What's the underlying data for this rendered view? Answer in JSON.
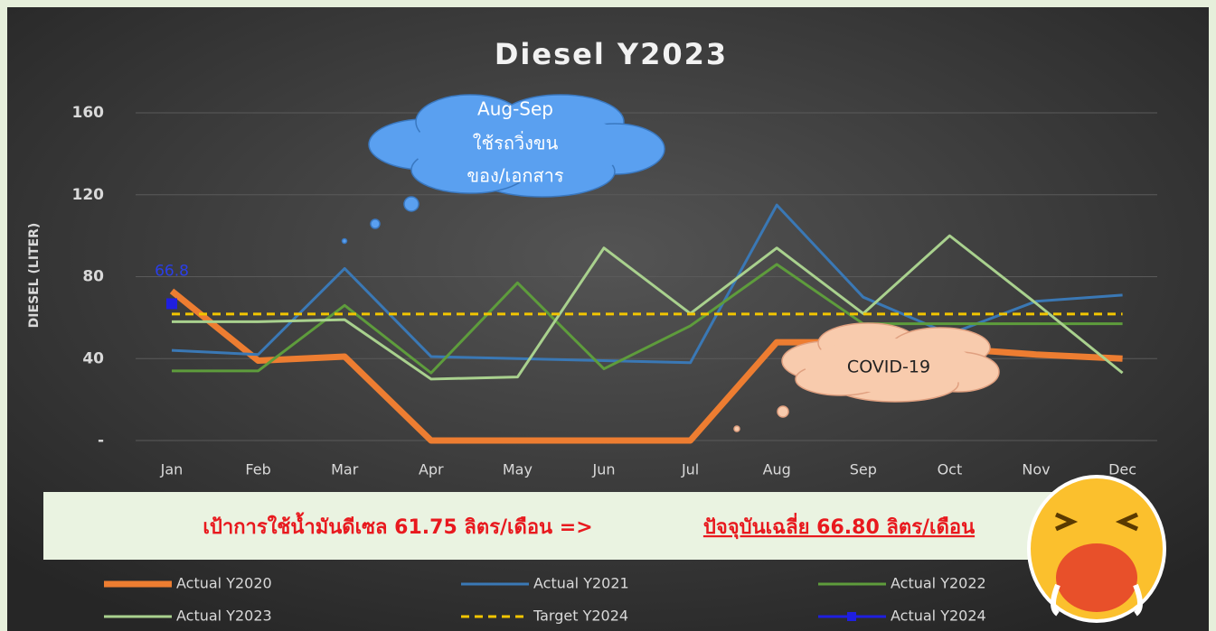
{
  "chart_data": {
    "type": "line",
    "title": "Diesel Y2023",
    "y_label": "DIESEL (LITER)",
    "categories": [
      "Jan",
      "Feb",
      "Mar",
      "Apr",
      "May",
      "Jun",
      "Jul",
      "Aug",
      "Sep",
      "Oct",
      "Nov",
      "Dec"
    ],
    "ylim": [
      0,
      160
    ],
    "yticks": [
      {
        "value": 0,
        "label": "-"
      },
      40,
      80,
      120,
      160
    ],
    "grid": true,
    "legend": "bottom",
    "series": [
      {
        "name": "Actual Y2020",
        "color": "#ed7d31",
        "values": [
          73,
          39,
          41,
          0,
          0,
          0,
          0,
          48,
          48,
          45,
          42,
          40
        ]
      },
      {
        "name": "Actual Y2021",
        "color": "#3a78b5",
        "values": [
          44,
          42,
          84,
          41,
          40,
          39,
          38,
          115,
          70,
          52,
          68,
          71
        ]
      },
      {
        "name": "Actual Y2022",
        "color": "#5e9c3c",
        "values": [
          34,
          34,
          66,
          33,
          77,
          35,
          56,
          86,
          57,
          57,
          57,
          57
        ]
      },
      {
        "name": "Actual Y2023",
        "color": "#a9d18e",
        "values": [
          58,
          58,
          59,
          30,
          31,
          94,
          62,
          94,
          62,
          100,
          67,
          33
        ]
      },
      {
        "name": "Target Y2024",
        "color": "#f2c500",
        "style": "dashed",
        "values": [
          61.75,
          61.75,
          61.75,
          61.75,
          61.75,
          61.75,
          61.75,
          61.75,
          61.75,
          61.75,
          61.75,
          61.75
        ]
      },
      {
        "name": "Actual Y2024",
        "color": "#1f1fe0",
        "marker": "square",
        "data_labels": true,
        "values": [
          66.8,
          null,
          null,
          null,
          null,
          null,
          null,
          null,
          null,
          null,
          null,
          null
        ]
      }
    ],
    "annotations": [
      "Aug-Sep",
      "ใช้รถวิ่งขน",
      "ของ/เอกสาร",
      "COVID-19"
    ],
    "banner": {
      "target_text": "เป้าการใช้น้ำมันดีเซล 61.75 ลิตร/เดือน  =>",
      "current_text": "ปัจจุบันเฉลี่ย 66.80 ลิตร/เดือน"
    }
  }
}
